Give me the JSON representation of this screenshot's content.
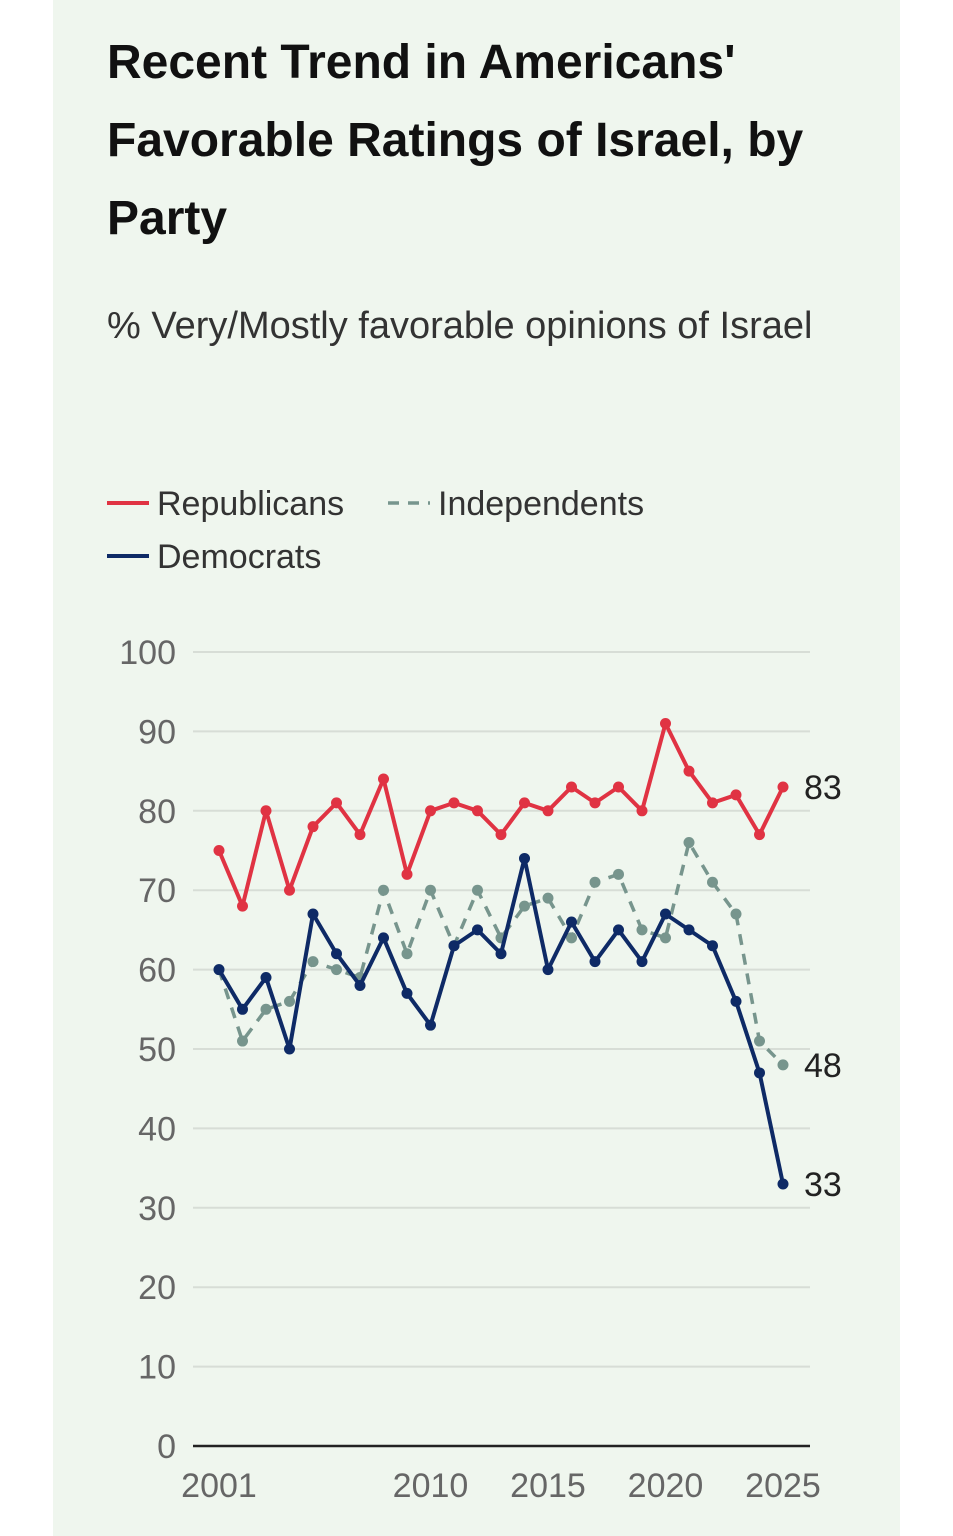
{
  "header": {
    "title": "Recent Trend in Americans' Favorable Ratings of Israel, by Party",
    "subtitle": "% Very/Mostly favorable opinions of Israel"
  },
  "chart_data": {
    "type": "line",
    "title": "Recent Trend in Americans' Favorable Ratings of Israel, by Party",
    "subtitle": "% Very/Mostly favorable opinions of Israel",
    "xlabel": "",
    "ylabel": "",
    "x": [
      2001,
      2002,
      2003,
      2004,
      2005,
      2006,
      2007,
      2008,
      2009,
      2010,
      2011,
      2012,
      2013,
      2014,
      2015,
      2016,
      2017,
      2018,
      2019,
      2020,
      2021,
      2022,
      2023,
      2024,
      2025
    ],
    "x_tick_labels": [
      "2001",
      "2010",
      "2015",
      "2020",
      "2025"
    ],
    "x_tick_values": [
      2001,
      2010,
      2015,
      2020,
      2025
    ],
    "xlim": [
      2001,
      2025
    ],
    "ylim": [
      0,
      100
    ],
    "y_ticks": [
      "0",
      "10",
      "20",
      "30",
      "40",
      "50",
      "60",
      "70",
      "80",
      "90",
      "100"
    ],
    "y_tick_values": [
      0,
      10,
      20,
      30,
      40,
      50,
      60,
      70,
      80,
      90,
      100
    ],
    "grid": true,
    "legend_position": "top-left",
    "series": [
      {
        "name": "Republicans",
        "color": "#e03343",
        "style": "solid",
        "values": [
          75,
          68,
          80,
          70,
          78,
          81,
          77,
          84,
          72,
          80,
          81,
          80,
          77,
          81,
          80,
          83,
          81,
          83,
          80,
          91,
          85,
          81,
          82,
          77,
          83
        ],
        "end_label": "83"
      },
      {
        "name": "Independents",
        "color": "#77958d",
        "style": "dashed",
        "values": [
          60,
          51,
          55,
          56,
          61,
          60,
          59,
          70,
          62,
          70,
          63,
          70,
          64,
          68,
          69,
          64,
          71,
          72,
          65,
          64,
          76,
          71,
          67,
          51,
          48
        ],
        "end_label": "48"
      },
      {
        "name": "Democrats",
        "color": "#0e2a66",
        "style": "solid",
        "values": [
          60,
          55,
          59,
          50,
          67,
          62,
          58,
          64,
          57,
          53,
          63,
          65,
          62,
          74,
          60,
          66,
          61,
          65,
          61,
          67,
          65,
          63,
          56,
          47,
          33
        ],
        "end_label": "33"
      }
    ]
  }
}
